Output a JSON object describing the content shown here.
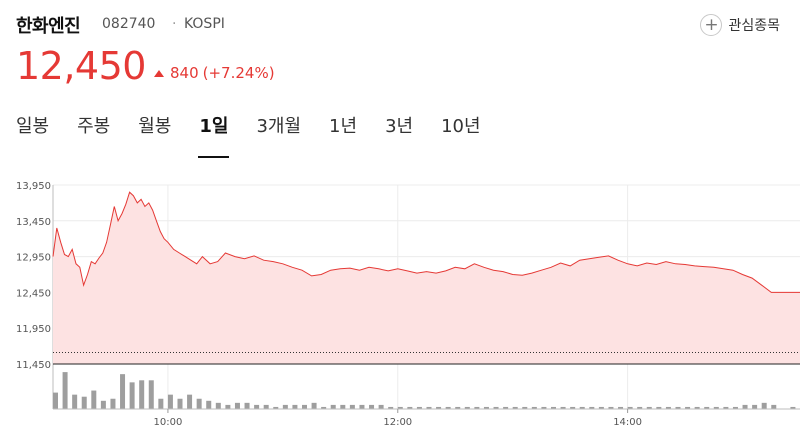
{
  "stock": {
    "name": "한화엔진",
    "code": "082740",
    "separator": "·",
    "market": "KOSPI",
    "price": "12,450",
    "change_amount": "840",
    "change_percent": "(+7.24%)",
    "direction": "up",
    "up_color": "#e53935"
  },
  "watchlist": {
    "label": "관심종목",
    "icon": "plus-circle-icon"
  },
  "tabs": [
    {
      "label": "일봉",
      "active": false
    },
    {
      "label": "주봉",
      "active": false
    },
    {
      "label": "월봉",
      "active": false
    },
    {
      "label": "1일",
      "active": true
    },
    {
      "label": "3개월",
      "active": false
    },
    {
      "label": "1년",
      "active": false
    },
    {
      "label": "3년",
      "active": false
    },
    {
      "label": "10년",
      "active": false
    }
  ],
  "chart_data": {
    "type": "area",
    "title": "",
    "xlabel": "",
    "ylabel": "",
    "y_ticks": [
      "13,950",
      "13,450",
      "12,950",
      "12,450",
      "11,950",
      "11,450"
    ],
    "y_tick_values": [
      13950,
      13450,
      12950,
      12450,
      11950,
      11450
    ],
    "ylim": [
      11450,
      13950
    ],
    "x_ticks": [
      "10:00",
      "12:00",
      "14:00"
    ],
    "x_range": [
      "09:00",
      "15:30"
    ],
    "previous_close": 11610,
    "line_color": "#e53935",
    "fill_color": "#fde2e2",
    "series": [
      {
        "values": [
          {
            "t": "09:00",
            "y": 12950
          },
          {
            "t": "09:02",
            "y": 13350
          },
          {
            "t": "09:04",
            "y": 13150
          },
          {
            "t": "09:06",
            "y": 12980
          },
          {
            "t": "09:08",
            "y": 12950
          },
          {
            "t": "09:10",
            "y": 13050
          },
          {
            "t": "09:12",
            "y": 12850
          },
          {
            "t": "09:14",
            "y": 12800
          },
          {
            "t": "09:16",
            "y": 12550
          },
          {
            "t": "09:18",
            "y": 12700
          },
          {
            "t": "09:20",
            "y": 12880
          },
          {
            "t": "09:22",
            "y": 12850
          },
          {
            "t": "09:24",
            "y": 12930
          },
          {
            "t": "09:26",
            "y": 13000
          },
          {
            "t": "09:28",
            "y": 13150
          },
          {
            "t": "09:30",
            "y": 13400
          },
          {
            "t": "09:32",
            "y": 13650
          },
          {
            "t": "09:34",
            "y": 13450
          },
          {
            "t": "09:36",
            "y": 13550
          },
          {
            "t": "09:38",
            "y": 13680
          },
          {
            "t": "09:40",
            "y": 13850
          },
          {
            "t": "09:42",
            "y": 13800
          },
          {
            "t": "09:44",
            "y": 13700
          },
          {
            "t": "09:46",
            "y": 13750
          },
          {
            "t": "09:48",
            "y": 13650
          },
          {
            "t": "09:50",
            "y": 13700
          },
          {
            "t": "09:52",
            "y": 13600
          },
          {
            "t": "09:54",
            "y": 13450
          },
          {
            "t": "09:56",
            "y": 13300
          },
          {
            "t": "09:58",
            "y": 13200
          },
          {
            "t": "10:00",
            "y": 13150
          },
          {
            "t": "10:03",
            "y": 13050
          },
          {
            "t": "10:06",
            "y": 13000
          },
          {
            "t": "10:09",
            "y": 12950
          },
          {
            "t": "10:12",
            "y": 12900
          },
          {
            "t": "10:15",
            "y": 12850
          },
          {
            "t": "10:18",
            "y": 12950
          },
          {
            "t": "10:22",
            "y": 12850
          },
          {
            "t": "10:26",
            "y": 12880
          },
          {
            "t": "10:30",
            "y": 13000
          },
          {
            "t": "10:35",
            "y": 12950
          },
          {
            "t": "10:40",
            "y": 12920
          },
          {
            "t": "10:45",
            "y": 12960
          },
          {
            "t": "10:50",
            "y": 12900
          },
          {
            "t": "10:55",
            "y": 12880
          },
          {
            "t": "11:00",
            "y": 12850
          },
          {
            "t": "11:05",
            "y": 12800
          },
          {
            "t": "11:10",
            "y": 12760
          },
          {
            "t": "11:15",
            "y": 12680
          },
          {
            "t": "11:20",
            "y": 12700
          },
          {
            "t": "11:25",
            "y": 12760
          },
          {
            "t": "11:30",
            "y": 12780
          },
          {
            "t": "11:35",
            "y": 12790
          },
          {
            "t": "11:40",
            "y": 12760
          },
          {
            "t": "11:45",
            "y": 12800
          },
          {
            "t": "11:50",
            "y": 12780
          },
          {
            "t": "11:55",
            "y": 12750
          },
          {
            "t": "12:00",
            "y": 12780
          },
          {
            "t": "12:05",
            "y": 12750
          },
          {
            "t": "12:10",
            "y": 12720
          },
          {
            "t": "12:15",
            "y": 12740
          },
          {
            "t": "12:20",
            "y": 12720
          },
          {
            "t": "12:25",
            "y": 12750
          },
          {
            "t": "12:30",
            "y": 12800
          },
          {
            "t": "12:35",
            "y": 12780
          },
          {
            "t": "12:40",
            "y": 12850
          },
          {
            "t": "12:45",
            "y": 12800
          },
          {
            "t": "12:50",
            "y": 12760
          },
          {
            "t": "12:55",
            "y": 12740
          },
          {
            "t": "13:00",
            "y": 12700
          },
          {
            "t": "13:05",
            "y": 12690
          },
          {
            "t": "13:10",
            "y": 12720
          },
          {
            "t": "13:15",
            "y": 12760
          },
          {
            "t": "13:20",
            "y": 12800
          },
          {
            "t": "13:25",
            "y": 12860
          },
          {
            "t": "13:30",
            "y": 12820
          },
          {
            "t": "13:35",
            "y": 12900
          },
          {
            "t": "13:40",
            "y": 12920
          },
          {
            "t": "13:45",
            "y": 12940
          },
          {
            "t": "13:50",
            "y": 12960
          },
          {
            "t": "13:55",
            "y": 12900
          },
          {
            "t": "14:00",
            "y": 12850
          },
          {
            "t": "14:05",
            "y": 12820
          },
          {
            "t": "14:10",
            "y": 12860
          },
          {
            "t": "14:15",
            "y": 12840
          },
          {
            "t": "14:20",
            "y": 12880
          },
          {
            "t": "14:25",
            "y": 12850
          },
          {
            "t": "14:30",
            "y": 12840
          },
          {
            "t": "14:35",
            "y": 12820
          },
          {
            "t": "14:40",
            "y": 12810
          },
          {
            "t": "14:45",
            "y": 12800
          },
          {
            "t": "14:50",
            "y": 12780
          },
          {
            "t": "14:55",
            "y": 12760
          },
          {
            "t": "15:00",
            "y": 12700
          },
          {
            "t": "15:05",
            "y": 12650
          },
          {
            "t": "15:10",
            "y": 12550
          },
          {
            "t": "15:15",
            "y": 12450
          },
          {
            "t": "15:20",
            "y": 12450
          },
          {
            "t": "15:30",
            "y": 12450
          }
        ]
      }
    ],
    "volume": [
      {
        "t": "09:00",
        "v": 8
      },
      {
        "t": "09:05",
        "v": 18
      },
      {
        "t": "09:10",
        "v": 7
      },
      {
        "t": "09:15",
        "v": 6
      },
      {
        "t": "09:20",
        "v": 9
      },
      {
        "t": "09:25",
        "v": 4
      },
      {
        "t": "09:30",
        "v": 5
      },
      {
        "t": "09:35",
        "v": 17
      },
      {
        "t": "09:40",
        "v": 13
      },
      {
        "t": "09:45",
        "v": 14
      },
      {
        "t": "09:50",
        "v": 14
      },
      {
        "t": "09:55",
        "v": 5
      },
      {
        "t": "10:00",
        "v": 7
      },
      {
        "t": "10:05",
        "v": 5
      },
      {
        "t": "10:10",
        "v": 7
      },
      {
        "t": "10:15",
        "v": 5
      },
      {
        "t": "10:20",
        "v": 4
      },
      {
        "t": "10:25",
        "v": 3
      },
      {
        "t": "10:30",
        "v": 2
      },
      {
        "t": "10:35",
        "v": 3
      },
      {
        "t": "10:40",
        "v": 3
      },
      {
        "t": "10:45",
        "v": 2
      },
      {
        "t": "10:50",
        "v": 2
      },
      {
        "t": "10:55",
        "v": 1
      },
      {
        "t": "11:00",
        "v": 2
      },
      {
        "t": "11:05",
        "v": 2
      },
      {
        "t": "11:10",
        "v": 2
      },
      {
        "t": "11:15",
        "v": 3
      },
      {
        "t": "11:20",
        "v": 1
      },
      {
        "t": "11:25",
        "v": 2
      },
      {
        "t": "11:30",
        "v": 2
      },
      {
        "t": "11:35",
        "v": 2
      },
      {
        "t": "11:40",
        "v": 2
      },
      {
        "t": "11:45",
        "v": 2
      },
      {
        "t": "11:50",
        "v": 2
      },
      {
        "t": "11:55",
        "v": 1
      },
      {
        "t": "12:00",
        "v": 1
      },
      {
        "t": "12:05",
        "v": 1
      },
      {
        "t": "12:10",
        "v": 1
      },
      {
        "t": "12:15",
        "v": 1
      },
      {
        "t": "12:20",
        "v": 1
      },
      {
        "t": "12:25",
        "v": 1
      },
      {
        "t": "12:30",
        "v": 1
      },
      {
        "t": "12:35",
        "v": 1
      },
      {
        "t": "12:40",
        "v": 1
      },
      {
        "t": "12:45",
        "v": 1
      },
      {
        "t": "12:50",
        "v": 1
      },
      {
        "t": "12:55",
        "v": 1
      },
      {
        "t": "13:00",
        "v": 1
      },
      {
        "t": "13:05",
        "v": 1
      },
      {
        "t": "13:10",
        "v": 1
      },
      {
        "t": "13:15",
        "v": 1
      },
      {
        "t": "13:20",
        "v": 1
      },
      {
        "t": "13:25",
        "v": 1
      },
      {
        "t": "13:30",
        "v": 1
      },
      {
        "t": "13:35",
        "v": 1
      },
      {
        "t": "13:40",
        "v": 1
      },
      {
        "t": "13:45",
        "v": 1
      },
      {
        "t": "13:50",
        "v": 1
      },
      {
        "t": "13:55",
        "v": 1
      },
      {
        "t": "14:00",
        "v": 1
      },
      {
        "t": "14:05",
        "v": 1
      },
      {
        "t": "14:10",
        "v": 1
      },
      {
        "t": "14:15",
        "v": 1
      },
      {
        "t": "14:20",
        "v": 1
      },
      {
        "t": "14:25",
        "v": 1
      },
      {
        "t": "14:30",
        "v": 1
      },
      {
        "t": "14:35",
        "v": 1
      },
      {
        "t": "14:40",
        "v": 1
      },
      {
        "t": "14:45",
        "v": 1
      },
      {
        "t": "14:50",
        "v": 1
      },
      {
        "t": "14:55",
        "v": 1
      },
      {
        "t": "15:00",
        "v": 2
      },
      {
        "t": "15:05",
        "v": 2
      },
      {
        "t": "15:10",
        "v": 3
      },
      {
        "t": "15:15",
        "v": 2
      },
      {
        "t": "15:20",
        "v": 0
      },
      {
        "t": "15:25",
        "v": 1
      }
    ],
    "volume_max": 20,
    "volume_color": "#9e9e9e",
    "grid": true
  }
}
